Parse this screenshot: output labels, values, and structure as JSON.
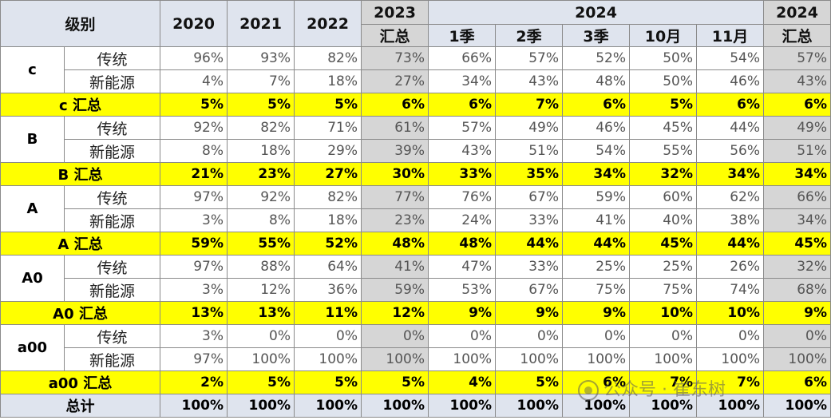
{
  "header": {
    "grade_label": "级别",
    "years": [
      "2020",
      "2021",
      "2022"
    ],
    "y2023": {
      "year": "2023",
      "sub": "汇总"
    },
    "y2024_group": "2024",
    "periods": [
      "1季",
      "2季",
      "3季",
      "10月",
      "11月"
    ],
    "y2024_total": {
      "year": "2024",
      "sub": "汇总"
    }
  },
  "groups": [
    {
      "grade": "c",
      "rows": [
        {
          "label": "传统",
          "values": [
            "96%",
            "93%",
            "82%",
            "73%",
            "66%",
            "57%",
            "52%",
            "50%",
            "54%",
            "57%"
          ]
        },
        {
          "label": "新能源",
          "values": [
            "4%",
            "7%",
            "18%",
            "27%",
            "34%",
            "43%",
            "48%",
            "50%",
            "46%",
            "43%"
          ]
        }
      ],
      "summary": {
        "label": "c 汇总",
        "values": [
          "5%",
          "5%",
          "5%",
          "6%",
          "6%",
          "7%",
          "6%",
          "5%",
          "6%",
          "6%"
        ]
      }
    },
    {
      "grade": "B",
      "rows": [
        {
          "label": "传统",
          "values": [
            "92%",
            "82%",
            "71%",
            "61%",
            "57%",
            "49%",
            "46%",
            "45%",
            "44%",
            "49%"
          ]
        },
        {
          "label": "新能源",
          "values": [
            "8%",
            "18%",
            "29%",
            "39%",
            "43%",
            "51%",
            "54%",
            "55%",
            "56%",
            "51%"
          ]
        }
      ],
      "summary": {
        "label": "B 汇总",
        "values": [
          "21%",
          "23%",
          "27%",
          "30%",
          "33%",
          "35%",
          "34%",
          "32%",
          "34%",
          "34%"
        ]
      }
    },
    {
      "grade": "A",
      "rows": [
        {
          "label": "传统",
          "values": [
            "97%",
            "92%",
            "82%",
            "77%",
            "76%",
            "67%",
            "59%",
            "60%",
            "62%",
            "66%"
          ]
        },
        {
          "label": "新能源",
          "values": [
            "3%",
            "8%",
            "18%",
            "23%",
            "24%",
            "33%",
            "41%",
            "40%",
            "38%",
            "34%"
          ]
        }
      ],
      "summary": {
        "label": "A 汇总",
        "values": [
          "59%",
          "55%",
          "52%",
          "48%",
          "48%",
          "44%",
          "44%",
          "45%",
          "44%",
          "45%"
        ]
      }
    },
    {
      "grade": "A0",
      "rows": [
        {
          "label": "传统",
          "values": [
            "97%",
            "88%",
            "64%",
            "41%",
            "47%",
            "33%",
            "25%",
            "25%",
            "26%",
            "32%"
          ]
        },
        {
          "label": "新能源",
          "values": [
            "3%",
            "12%",
            "36%",
            "59%",
            "53%",
            "67%",
            "75%",
            "75%",
            "74%",
            "68%"
          ]
        }
      ],
      "summary": {
        "label": "A0 汇总",
        "values": [
          "13%",
          "13%",
          "11%",
          "12%",
          "9%",
          "9%",
          "9%",
          "10%",
          "10%",
          "9%"
        ]
      }
    },
    {
      "grade": "a00",
      "rows": [
        {
          "label": "传统",
          "values": [
            "3%",
            "0%",
            "0%",
            "0%",
            "0%",
            "0%",
            "0%",
            "0%",
            "0%",
            "0%"
          ]
        },
        {
          "label": "新能源",
          "values": [
            "97%",
            "100%",
            "100%",
            "100%",
            "100%",
            "100%",
            "100%",
            "100%",
            "100%",
            "100%"
          ]
        }
      ],
      "summary": {
        "label": "a00 汇总",
        "values": [
          "2%",
          "5%",
          "5%",
          "5%",
          "4%",
          "5%",
          "6%",
          "7%",
          "7%",
          "6%"
        ]
      }
    }
  ],
  "total": {
    "label": "总计",
    "values": [
      "100%",
      "100%",
      "100%",
      "100%",
      "100%",
      "100%",
      "100%",
      "100%",
      "100%",
      "100%"
    ]
  },
  "watermark": "公众号 · 崔东树",
  "watermark_icon": "wechat-icon"
}
